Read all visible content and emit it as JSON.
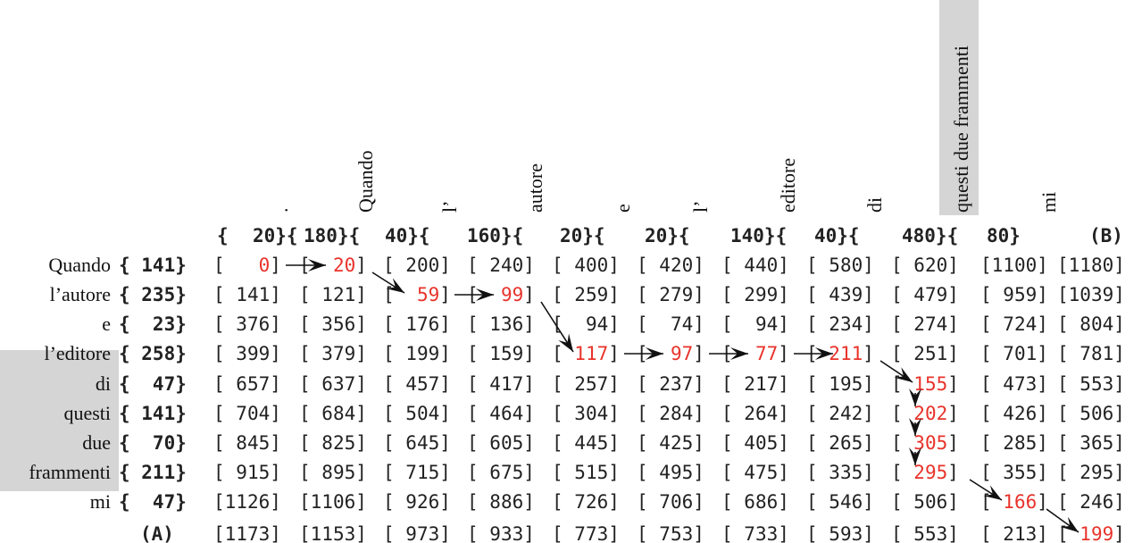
{
  "column_words": [
    ".",
    "Quando",
    "l’",
    "autore",
    "e",
    "l’",
    "editore",
    "di",
    "questi due frammenti",
    "mi"
  ],
  "column_weights": [
    "{",
    "20}{",
    "180}{",
    "40}{",
    "160}{",
    "20}{",
    "20}{",
    "140}{",
    "40}{",
    "480}{",
    "80}",
    "(B)"
  ],
  "row_labels": [
    "Quando",
    "l’autore",
    "e",
    "l’editore",
    "di",
    "questi",
    "due",
    "frammenti",
    "mi"
  ],
  "row_weights": [
    "{ 141}",
    "{ 235}",
    "{  23}",
    "{ 258}",
    "{  47}",
    "{ 141}",
    "{  70}",
    "{ 211}",
    "{  47}"
  ],
  "label_A": "(A)",
  "matrix": [
    [
      "0",
      "20",
      "200",
      "240",
      "400",
      "420",
      "440",
      "580",
      "620",
      "1100",
      "1180"
    ],
    [
      "141",
      "121",
      "59",
      "99",
      "259",
      "279",
      "299",
      "439",
      "479",
      "959",
      "1039"
    ],
    [
      "376",
      "356",
      "176",
      "136",
      "94",
      "74",
      "94",
      "234",
      "274",
      "724",
      "804"
    ],
    [
      "399",
      "379",
      "199",
      "159",
      "117",
      "97",
      "77",
      "211",
      "251",
      "701",
      "781"
    ],
    [
      "657",
      "637",
      "457",
      "417",
      "257",
      "237",
      "217",
      "195",
      "155",
      "473",
      "553"
    ],
    [
      "704",
      "684",
      "504",
      "464",
      "304",
      "284",
      "264",
      "242",
      "202",
      "426",
      "506"
    ],
    [
      "845",
      "825",
      "645",
      "605",
      "445",
      "425",
      "405",
      "265",
      "305",
      "285",
      "365"
    ],
    [
      "915",
      "895",
      "715",
      "675",
      "515",
      "495",
      "475",
      "335",
      "295",
      "355",
      "295"
    ],
    [
      "1126",
      "1106",
      "926",
      "886",
      "726",
      "706",
      "686",
      "546",
      "506",
      "166",
      "246"
    ],
    [
      "1173",
      "1153",
      "973",
      "933",
      "773",
      "753",
      "733",
      "593",
      "553",
      "213",
      "199"
    ]
  ],
  "highlighted_cells": [
    [
      0,
      0
    ],
    [
      0,
      1
    ],
    [
      1,
      2
    ],
    [
      1,
      3
    ],
    [
      3,
      4
    ],
    [
      3,
      5
    ],
    [
      3,
      6
    ],
    [
      3,
      7
    ],
    [
      4,
      8
    ],
    [
      5,
      8
    ],
    [
      6,
      8
    ],
    [
      7,
      8
    ],
    [
      8,
      9
    ],
    [
      9,
      10
    ]
  ],
  "colors": {
    "highlight_text": "#e8332b",
    "shade": "#d5d5d5",
    "text": "#222222"
  }
}
